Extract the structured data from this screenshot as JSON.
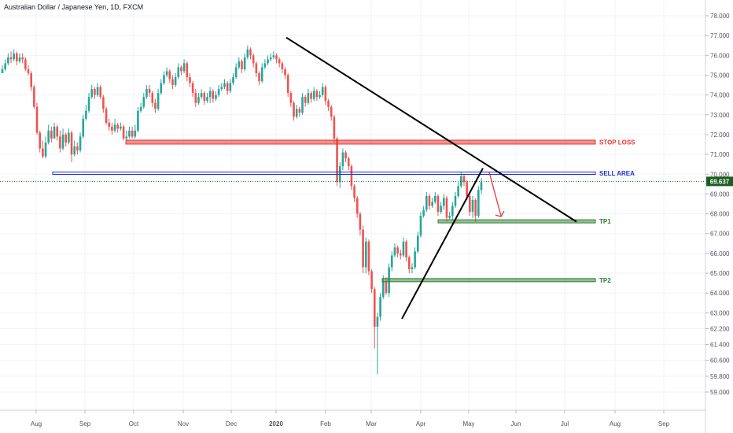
{
  "chart_data": {
    "type": "candlestick",
    "title": "Australian Dollar / Japanese Yen, 1D, FXCM",
    "xlabel": "",
    "ylabel": "",
    "x_ticks": [
      "Aug",
      "Sep",
      "Oct",
      "Nov",
      "Dec",
      "2020",
      "Feb",
      "Mar",
      "Apr",
      "May",
      "Jun",
      "Jul",
      "Aug",
      "Sep"
    ],
    "y_ticks": [
      "78.000",
      "77.000",
      "76.000",
      "75.000",
      "74.000",
      "73.000",
      "72.000",
      "71.000",
      "70.000",
      "69.000",
      "68.000",
      "67.000",
      "66.000",
      "65.000",
      "64.000",
      "63.000",
      "62.200",
      "61.400",
      "60.600",
      "59.800",
      "59.000"
    ],
    "ylim": [
      58.5,
      78.4
    ],
    "grid": true,
    "current_price": {
      "label": "69.637",
      "value": 69.637
    },
    "colors": {
      "up": "#26a69a",
      "down": "#ef5350",
      "stop": "#e53935",
      "sell": "#1e2fd9",
      "tp": "#2e7d32",
      "trend": "#000000",
      "arrow": "#e53935"
    },
    "candles_close": [
      75.3,
      75.6,
      75.9,
      75.8,
      76.1,
      75.7,
      75.9,
      75.8,
      75.3,
      75.1,
      74.4,
      73.4,
      72.1,
      71.3,
      70.9,
      71.6,
      72.2,
      71.8,
      72.4,
      71.9,
      71.3,
      72.0,
      71.6,
      72.1,
      71.0,
      71.4,
      71.2,
      71.9,
      72.8,
      73.2,
      73.9,
      74.3,
      74.0,
      74.4,
      73.9,
      73.3,
      72.6,
      72.4,
      72.2,
      72.5,
      72.3,
      72.4,
      71.8,
      71.9,
      72.2,
      71.9,
      72.2,
      73.2,
      73.4,
      73.9,
      74.3,
      74.1,
      73.6,
      73.3,
      74.1,
      74.6,
      75.0,
      75.2,
      74.8,
      74.5,
      74.9,
      75.4,
      75.2,
      75.6,
      74.9,
      74.6,
      74.1,
      73.6,
      73.9,
      74.1,
      73.7,
      73.9,
      74.2,
      73.8,
      74.0,
      74.3,
      74.4,
      74.6,
      74.2,
      74.6,
      74.9,
      75.4,
      75.7,
      75.3,
      75.9,
      76.3,
      76.0,
      75.6,
      75.1,
      74.7,
      75.4,
      75.6,
      75.8,
      75.9,
      76.0,
      75.8,
      75.6,
      75.3,
      75.0,
      74.1,
      73.6,
      72.9,
      73.3,
      73.1,
      73.9,
      73.6,
      74.1,
      73.8,
      74.2,
      73.9,
      74.0,
      74.4,
      73.7,
      73.4,
      72.9,
      71.8,
      69.6,
      70.4,
      71.1,
      70.8,
      70.4,
      69.4,
      68.8,
      68.0,
      67.2,
      65.3,
      66.6,
      65.1,
      64.2,
      62.3,
      62.8,
      63.8,
      64.6,
      64.0,
      65.3,
      65.9,
      66.3,
      66.0,
      65.9,
      66.6,
      65.8,
      65.2,
      65.3,
      66.1,
      66.9,
      67.9,
      68.2,
      68.9,
      68.4,
      68.6,
      68.9,
      68.1,
      68.4,
      68.8,
      67.8,
      67.9,
      68.4,
      68.9,
      69.4,
      69.9,
      69.6,
      68.9,
      68.1,
      68.7,
      67.9,
      69.2,
      69.6
    ],
    "candles_high": [
      75.5,
      75.8,
      76.1,
      76.2,
      76.3,
      76.2,
      76.1,
      76.1,
      75.9,
      75.5,
      75.2,
      74.5,
      73.6,
      72.2,
      71.7,
      71.9,
      72.5,
      72.4,
      72.6,
      72.5,
      72.2,
      72.3,
      72.1,
      72.3,
      72.2,
      71.7,
      71.6,
      72.1,
      73.0,
      73.5,
      74.1,
      74.5,
      74.4,
      74.6,
      74.5,
      74.0,
      73.4,
      72.8,
      72.6,
      72.8,
      72.6,
      72.6,
      72.5,
      72.2,
      72.4,
      72.4,
      72.5,
      73.4,
      73.6,
      74.1,
      74.5,
      74.5,
      74.2,
      73.8,
      74.3,
      74.8,
      75.2,
      75.4,
      75.3,
      75.0,
      75.1,
      75.6,
      75.5,
      75.8,
      75.7,
      75.1,
      74.7,
      74.3,
      74.1,
      74.3,
      74.2,
      74.1,
      74.4,
      74.3,
      74.2,
      74.5,
      74.6,
      74.8,
      74.7,
      74.8,
      75.1,
      75.6,
      75.9,
      75.8,
      76.1,
      76.5,
      76.4,
      76.1,
      75.7,
      75.2,
      75.6,
      75.8,
      76.0,
      76.1,
      76.2,
      76.1,
      75.9,
      75.7,
      75.4,
      75.1,
      74.2,
      73.7,
      73.5,
      73.4,
      74.1,
      74.0,
      74.3,
      74.2,
      74.4,
      74.3,
      74.2,
      74.6,
      74.5,
      73.8,
      73.5,
      73.0,
      71.9,
      70.6,
      71.3,
      71.2,
      70.9,
      70.5,
      69.5,
      68.9,
      68.1,
      67.4,
      66.8,
      66.7,
      65.2,
      64.3,
      63.0,
      64.0,
      64.9,
      64.8,
      65.5,
      66.1,
      66.5,
      66.4,
      66.2,
      66.8,
      66.7,
      65.9,
      65.5,
      66.3,
      67.1,
      68.1,
      68.4,
      69.1,
      69.0,
      68.8,
      69.1,
      69.0,
      68.6,
      69.0,
      68.9,
      68.1,
      68.6,
      69.1,
      69.6,
      70.1,
      70.0,
      69.7,
      69.0,
      68.9,
      68.8,
      69.4,
      69.8
    ],
    "candles_low": [
      75.1,
      75.2,
      75.5,
      75.6,
      75.7,
      75.5,
      75.6,
      75.6,
      75.2,
      75.0,
      74.2,
      73.3,
      72.0,
      71.1,
      70.8,
      70.8,
      71.5,
      71.6,
      71.8,
      71.7,
      71.1,
      71.2,
      71.4,
      71.5,
      70.6,
      70.9,
      71.0,
      71.1,
      71.8,
      72.7,
      73.1,
      73.8,
      73.8,
      73.9,
      73.8,
      73.1,
      72.5,
      72.2,
      72.0,
      72.1,
      72.1,
      72.2,
      71.7,
      71.7,
      71.8,
      71.8,
      71.8,
      72.1,
      73.1,
      73.3,
      73.8,
      73.9,
      73.4,
      73.1,
      73.2,
      74.0,
      74.5,
      74.9,
      74.6,
      74.3,
      74.4,
      74.8,
      75.0,
      75.1,
      74.7,
      74.4,
      73.9,
      73.4,
      73.5,
      73.8,
      73.5,
      73.6,
      73.6,
      73.6,
      73.7,
      73.9,
      74.2,
      74.3,
      74.0,
      74.1,
      74.5,
      74.8,
      75.3,
      75.1,
      75.2,
      75.8,
      75.8,
      75.4,
      74.9,
      74.5,
      74.6,
      75.3,
      75.5,
      75.7,
      75.8,
      75.6,
      75.4,
      75.1,
      74.8,
      73.9,
      73.4,
      72.7,
      72.8,
      72.9,
      73.0,
      73.4,
      73.5,
      73.6,
      73.7,
      73.7,
      73.8,
      73.9,
      73.5,
      73.2,
      72.7,
      71.6,
      69.4,
      69.3,
      70.2,
      70.6,
      70.2,
      69.2,
      68.6,
      67.8,
      66.9,
      65.0,
      65.0,
      64.9,
      64.0,
      61.2,
      59.9,
      62.6,
      63.7,
      63.9,
      63.8,
      65.1,
      65.8,
      65.8,
      65.7,
      65.8,
      65.6,
      65.0,
      65.0,
      65.2,
      66.0,
      66.8,
      67.8,
      68.1,
      68.2,
      68.3,
      68.5,
      67.9,
      68.0,
      68.2,
      67.6,
      67.7,
      67.7,
      68.3,
      68.8,
      69.3,
      69.4,
      68.7,
      67.9,
      67.8,
      67.6,
      67.8,
      69.0
    ]
  },
  "annotations": {
    "stop_loss": {
      "label": "STOP LOSS",
      "value": 71.62,
      "x_start": "Oct",
      "x_end": "Jul"
    },
    "sell_area": {
      "label": "SELL AREA",
      "value": 70.05,
      "x_start": "Aug",
      "x_end": "Jul"
    },
    "tp1": {
      "label": "TP1",
      "value": 67.62,
      "x_start": "Apr",
      "x_end": "Jul"
    },
    "tp2": {
      "label": "TP2",
      "value": 64.65,
      "x_start": "Mar",
      "x_end": "Jul"
    }
  }
}
